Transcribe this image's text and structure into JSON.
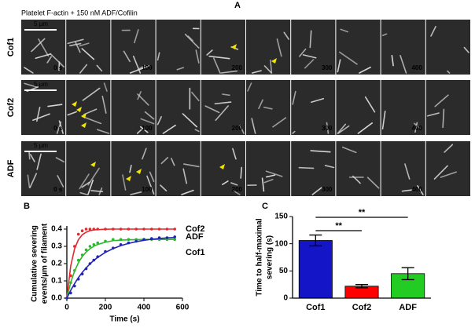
{
  "panel_a": {
    "label": "A",
    "title": "Platelet F-actin + 150 nM ADF/Cofilin",
    "rows": [
      {
        "label": "Cof1",
        "color": "#1f1fa8",
        "scale_bar": "5 µm",
        "times": [
          "0 s",
          null,
          "100",
          null,
          "200",
          null,
          "300",
          null,
          "400",
          null
        ]
      },
      {
        "label": "Cof2",
        "color": "#d9252a",
        "scale_bar": "5 µm",
        "times": [
          "0 s",
          null,
          "100",
          null,
          "200",
          null,
          "300",
          null,
          "400",
          null
        ]
      },
      {
        "label": "ADF",
        "color": "#27b327",
        "scale_bar": "5 µm",
        "times": [
          "0 s",
          null,
          "100",
          null,
          "200",
          null,
          "300",
          null,
          "400",
          null
        ]
      }
    ]
  },
  "chart_data": [
    {
      "type": "line",
      "panel": "B",
      "xlabel": "Time (s)",
      "ylabel": [
        "Cumulative severing",
        "events/µm of filament"
      ],
      "x": [
        0,
        20,
        40,
        60,
        80,
        100,
        120,
        140,
        160,
        200,
        240,
        280,
        320,
        360,
        400,
        440,
        480,
        520,
        560
      ],
      "xlim": [
        0,
        600
      ],
      "xticks": [
        0,
        200,
        400,
        600
      ],
      "ylim": [
        0,
        0.4
      ],
      "yticks": [
        {
          "value": 0,
          "label": "0.0"
        },
        0.1,
        0.2,
        0.3,
        0.4
      ],
      "series": [
        {
          "name": "Cof2",
          "color": "#e8262b",
          "values": [
            0,
            0.13,
            0.3,
            0.37,
            0.39,
            0.4,
            0.4,
            0.4,
            0.4,
            0.4,
            0.4,
            0.4,
            0.4,
            0.4,
            0.4,
            0.4,
            0.4,
            0.4,
            0.4
          ],
          "fit": [
            0,
            0.186,
            0.285,
            0.339,
            0.367,
            0.382,
            0.391,
            0.395,
            0.397,
            0.399,
            0.4,
            0.4,
            0.4,
            0.4,
            0.4,
            0.4,
            0.4,
            0.4,
            0.4
          ]
        },
        {
          "name": "ADF",
          "color": "#2eb82e",
          "values": [
            0,
            0.09,
            0.16,
            0.22,
            0.25,
            0.28,
            0.3,
            0.31,
            0.32,
            0.33,
            0.34,
            0.34,
            0.34,
            0.34,
            0.34,
            0.34,
            0.34,
            0.34,
            0.34
          ],
          "fit": [
            0,
            0.09,
            0.156,
            0.205,
            0.241,
            0.267,
            0.286,
            0.301,
            0.311,
            0.324,
            0.333,
            0.336,
            0.338,
            0.339,
            0.34,
            0.34,
            0.34,
            0.34,
            0.34
          ]
        },
        {
          "name": "Cof1",
          "color": "#2424b4",
          "values": [
            0,
            0.03,
            0.07,
            0.11,
            0.14,
            0.17,
            0.2,
            0.22,
            0.24,
            0.27,
            0.29,
            0.31,
            0.32,
            0.33,
            0.34,
            0.345,
            0.35,
            0.35,
            0.355
          ],
          "fit": [
            0,
            0.045,
            0.084,
            0.119,
            0.149,
            0.175,
            0.198,
            0.219,
            0.236,
            0.265,
            0.287,
            0.304,
            0.317,
            0.327,
            0.335,
            0.341,
            0.345,
            0.349,
            0.351
          ]
        }
      ]
    },
    {
      "type": "bar",
      "panel": "C",
      "ylabel": [
        "Time to half-maximal",
        "severing (s)"
      ],
      "categories": [
        "Cof1",
        "Cof2",
        "ADF"
      ],
      "values": [
        106,
        22,
        45
      ],
      "errors": [
        10,
        3,
        11
      ],
      "colors": [
        "#1515c8",
        "#ff0000",
        "#22cc22"
      ],
      "ylim": [
        0,
        150
      ],
      "yticks": [
        0,
        50,
        100,
        150
      ],
      "annotations": [
        "**",
        "**"
      ]
    }
  ]
}
